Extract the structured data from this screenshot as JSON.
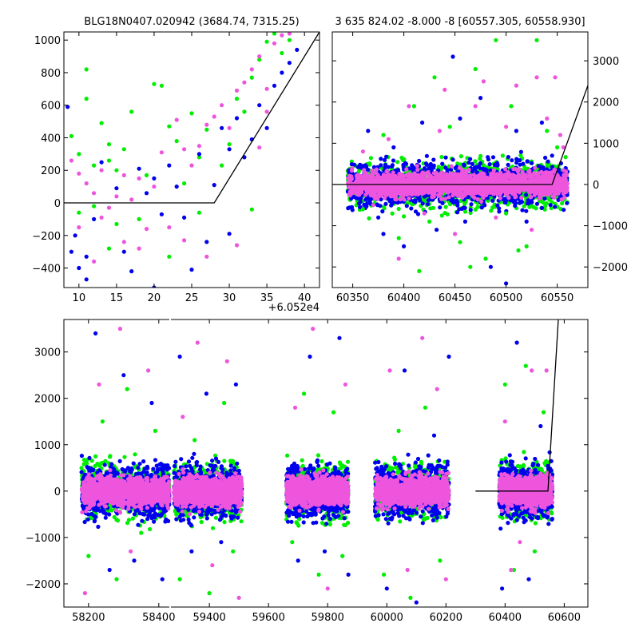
{
  "chart_data": [
    {
      "id": "top_left",
      "type": "scatter",
      "title": "BLG18N0407.020942 (3684.74, 7315.25)",
      "x_offset_label": "+6.052e4",
      "xlim": [
        8,
        42
      ],
      "ylim": [
        -520,
        1050
      ],
      "xticks": [
        10,
        15,
        20,
        25,
        30,
        35,
        40
      ],
      "yticks": [
        -400,
        -200,
        0,
        200,
        400,
        600,
        800,
        1000
      ],
      "y_axis_side": "left",
      "model_line": [
        [
          8,
          0
        ],
        [
          28,
          0
        ],
        [
          42,
          1050
        ]
      ],
      "series": [
        {
          "color": "#00ee00",
          "points": [
            [
              9,
              410
            ],
            [
              10,
              300
            ],
            [
              11,
              820
            ],
            [
              11,
              640
            ],
            [
              12,
              230
            ],
            [
              13,
              490
            ],
            [
              14,
              260
            ],
            [
              14,
              360
            ],
            [
              15,
              200
            ],
            [
              16,
              330
            ],
            [
              17,
              560
            ],
            [
              19,
              170
            ],
            [
              20,
              730
            ],
            [
              21,
              720
            ],
            [
              22,
              470
            ],
            [
              23,
              380
            ],
            [
              24,
              120
            ],
            [
              25,
              550
            ],
            [
              26,
              280
            ],
            [
              27,
              450
            ],
            [
              29,
              230
            ],
            [
              30,
              360
            ],
            [
              31,
              640
            ],
            [
              32,
              560
            ],
            [
              33,
              770
            ],
            [
              34,
              880
            ],
            [
              35,
              990
            ],
            [
              36,
              1040
            ],
            [
              37,
              920
            ],
            [
              38,
              1000
            ],
            [
              10,
              -60
            ],
            [
              12,
              -20
            ],
            [
              15,
              -130
            ],
            [
              18,
              -100
            ],
            [
              22,
              -330
            ],
            [
              26,
              -60
            ],
            [
              33,
              -40
            ],
            [
              14,
              -280
            ]
          ]
        },
        {
          "color": "#0000ee",
          "points": [
            [
              8.5,
              590
            ],
            [
              9,
              -300
            ],
            [
              9.5,
              -200
            ],
            [
              10,
              -400
            ],
            [
              11,
              -330
            ],
            [
              12,
              -100
            ],
            [
              13,
              250
            ],
            [
              15,
              90
            ],
            [
              17,
              -420
            ],
            [
              18,
              210
            ],
            [
              19,
              60
            ],
            [
              20,
              150
            ],
            [
              21,
              -70
            ],
            [
              22,
              230
            ],
            [
              23,
              100
            ],
            [
              24,
              -90
            ],
            [
              25,
              -410
            ],
            [
              26,
              300
            ],
            [
              27,
              -240
            ],
            [
              28,
              110
            ],
            [
              29,
              460
            ],
            [
              30,
              330
            ],
            [
              31,
              520
            ],
            [
              32,
              280
            ],
            [
              33,
              390
            ],
            [
              34,
              600
            ],
            [
              35,
              460
            ],
            [
              36,
              720
            ],
            [
              37,
              800
            ],
            [
              38,
              860
            ],
            [
              39,
              940
            ],
            [
              16,
              -300
            ],
            [
              20,
              -520
            ],
            [
              11,
              -470
            ],
            [
              30,
              -190
            ]
          ]
        },
        {
          "color": "#ee55dd",
          "points": [
            [
              9,
              260
            ],
            [
              10,
              180
            ],
            [
              11,
              120
            ],
            [
              12,
              60
            ],
            [
              13,
              200
            ],
            [
              14,
              -30
            ],
            [
              15,
              40
            ],
            [
              16,
              170
            ],
            [
              17,
              20
            ],
            [
              18,
              150
            ],
            [
              19,
              -160
            ],
            [
              20,
              100
            ],
            [
              21,
              310
            ],
            [
              22,
              -150
            ],
            [
              23,
              510
            ],
            [
              24,
              330
            ],
            [
              25,
              230
            ],
            [
              26,
              350
            ],
            [
              27,
              480
            ],
            [
              28,
              530
            ],
            [
              29,
              600
            ],
            [
              30,
              460
            ],
            [
              31,
              690
            ],
            [
              32,
              740
            ],
            [
              33,
              820
            ],
            [
              34,
              900
            ],
            [
              35,
              700
            ],
            [
              36,
              980
            ],
            [
              37,
              1030
            ],
            [
              38,
              1040
            ],
            [
              10,
              -150
            ],
            [
              12,
              -360
            ],
            [
              16,
              -240
            ],
            [
              24,
              -230
            ],
            [
              27,
              -330
            ],
            [
              31,
              -260
            ],
            [
              13,
              -90
            ],
            [
              18,
              -280
            ],
            [
              35,
              560
            ],
            [
              34,
              340
            ]
          ]
        }
      ]
    },
    {
      "id": "top_right",
      "type": "scatter",
      "title": "3 635 824.02 -8.000 -8 [60557.305, 60558.930]",
      "xlim": [
        60330,
        60580
      ],
      "ylim": [
        -2500,
        3700
      ],
      "xticks": [
        60350,
        60400,
        60450,
        60500,
        60550
      ],
      "yticks": [
        -2000,
        -1000,
        0,
        1000,
        2000,
        3000
      ],
      "y_axis_side": "right",
      "model_line": [
        [
          60330,
          0
        ],
        [
          60545,
          0
        ],
        [
          60580,
          2400
        ]
      ],
      "bands": [
        [
          60345,
          60560
        ]
      ],
      "series": [
        {
          "color": "#00ee00",
          "points": [
            [
              60360,
              -600
            ],
            [
              60380,
              1200
            ],
            [
              60395,
              -1300
            ],
            [
              60410,
              1900
            ],
            [
              60425,
              -900
            ],
            [
              60430,
              2600
            ],
            [
              60445,
              1400
            ],
            [
              60455,
              -1400
            ],
            [
              60470,
              2800
            ],
            [
              60480,
              -1800
            ],
            [
              60490,
              3500
            ],
            [
              60500,
              -700
            ],
            [
              60505,
              1900
            ],
            [
              60520,
              -1500
            ],
            [
              60530,
              3500
            ],
            [
              60540,
              1300
            ],
            [
              60550,
              900
            ],
            [
              60415,
              -2100
            ],
            [
              60465,
              -2000
            ],
            [
              60512,
              -1600
            ]
          ]
        },
        {
          "color": "#0000ee",
          "points": [
            [
              60365,
              1300
            ],
            [
              60375,
              -800
            ],
            [
              60390,
              900
            ],
            [
              60400,
              -1500
            ],
            [
              60418,
              1500
            ],
            [
              60432,
              -1100
            ],
            [
              60448,
              3100
            ],
            [
              60460,
              -900
            ],
            [
              60475,
              2100
            ],
            [
              60485,
              -2000
            ],
            [
              60500,
              -2400
            ],
            [
              60510,
              1300
            ],
            [
              60520,
              -900
            ],
            [
              60535,
              1500
            ],
            [
              60545,
              700
            ],
            [
              60380,
              -1200
            ],
            [
              60455,
              1600
            ]
          ]
        },
        {
          "color": "#ee55dd",
          "points": [
            [
              60360,
              800
            ],
            [
              60370,
              -500
            ],
            [
              60385,
              1100
            ],
            [
              60395,
              -1800
            ],
            [
              60405,
              1900
            ],
            [
              60420,
              -700
            ],
            [
              60435,
              1300
            ],
            [
              60440,
              2300
            ],
            [
              60450,
              -1200
            ],
            [
              60470,
              1900
            ],
            [
              60478,
              2500
            ],
            [
              60490,
              -800
            ],
            [
              60500,
              1400
            ],
            [
              60510,
              2400
            ],
            [
              60525,
              -1100
            ],
            [
              60530,
              2600
            ],
            [
              60540,
              1600
            ],
            [
              60548,
              2600
            ],
            [
              60553,
              1200
            ],
            [
              60556,
              900
            ]
          ]
        }
      ]
    },
    {
      "id": "bottom",
      "type": "scatter",
      "xlim": [
        58130,
        60680
      ],
      "ylim": [
        -2500,
        3700
      ],
      "xticks": [
        58200,
        58400,
        59400,
        59600,
        59800,
        60000,
        60200,
        60400,
        60600
      ],
      "yticks": [
        -2000,
        -1000,
        0,
        1000,
        2000,
        3000
      ],
      "y_axis_side": "left",
      "model_line": [
        [
          60300,
          0
        ],
        [
          60545,
          0
        ],
        [
          60580,
          3700
        ]
      ],
      "bands": [
        [
          58180,
          58430
        ],
        [
          59280,
          59510
        ],
        [
          59660,
          59870
        ],
        [
          59960,
          60210
        ],
        [
          60380,
          60560
        ]
      ],
      "series": [
        {
          "color": "#00ee00",
          "points": [
            [
              58200,
              -1400
            ],
            [
              58240,
              1500
            ],
            [
              58280,
              -1900
            ],
            [
              58310,
              2200
            ],
            [
              58350,
              -900
            ],
            [
              58390,
              1300
            ],
            [
              59300,
              -1900
            ],
            [
              59350,
              1100
            ],
            [
              59400,
              -2200
            ],
            [
              59450,
              1900
            ],
            [
              59480,
              -1300
            ],
            [
              59680,
              -1100
            ],
            [
              59720,
              2100
            ],
            [
              59770,
              -1800
            ],
            [
              59820,
              1700
            ],
            [
              59850,
              -1400
            ],
            [
              59990,
              -1800
            ],
            [
              60040,
              1300
            ],
            [
              60080,
              -2300
            ],
            [
              60130,
              1800
            ],
            [
              60180,
              -1500
            ],
            [
              60400,
              2300
            ],
            [
              60430,
              -1700
            ],
            [
              60470,
              2700
            ],
            [
              60500,
              -1300
            ],
            [
              60530,
              1700
            ]
          ]
        },
        {
          "color": "#0000ee",
          "points": [
            [
              58220,
              3400
            ],
            [
              58260,
              -1700
            ],
            [
              58300,
              2500
            ],
            [
              58330,
              -1500
            ],
            [
              58380,
              1900
            ],
            [
              58410,
              -1900
            ],
            [
              59300,
              2900
            ],
            [
              59340,
              -1300
            ],
            [
              59390,
              2100
            ],
            [
              59440,
              -1100
            ],
            [
              59490,
              2300
            ],
            [
              59700,
              -1500
            ],
            [
              59740,
              2900
            ],
            [
              59790,
              -1300
            ],
            [
              59840,
              3300
            ],
            [
              59870,
              -1800
            ],
            [
              60000,
              -2100
            ],
            [
              60060,
              2600
            ],
            [
              60100,
              -2400
            ],
            [
              60160,
              1200
            ],
            [
              60210,
              2900
            ],
            [
              60390,
              -2100
            ],
            [
              60440,
              3200
            ],
            [
              60480,
              -1900
            ],
            [
              60520,
              1400
            ]
          ]
        },
        {
          "color": "#ee55dd",
          "points": [
            [
              58190,
              -2200
            ],
            [
              58230,
              2300
            ],
            [
              58290,
              3500
            ],
            [
              58320,
              -1300
            ],
            [
              58370,
              2600
            ],
            [
              59310,
              1600
            ],
            [
              59360,
              3200
            ],
            [
              59410,
              -1600
            ],
            [
              59460,
              2800
            ],
            [
              59500,
              -2300
            ],
            [
              59690,
              1800
            ],
            [
              59750,
              3500
            ],
            [
              59800,
              -2100
            ],
            [
              59860,
              2300
            ],
            [
              60010,
              2600
            ],
            [
              60070,
              -1700
            ],
            [
              60120,
              3300
            ],
            [
              60170,
              2200
            ],
            [
              60200,
              -1900
            ],
            [
              60400,
              1500
            ],
            [
              60450,
              -1100
            ],
            [
              60490,
              2600
            ],
            [
              60540,
              2600
            ],
            [
              60420,
              -1700
            ]
          ]
        }
      ]
    }
  ]
}
